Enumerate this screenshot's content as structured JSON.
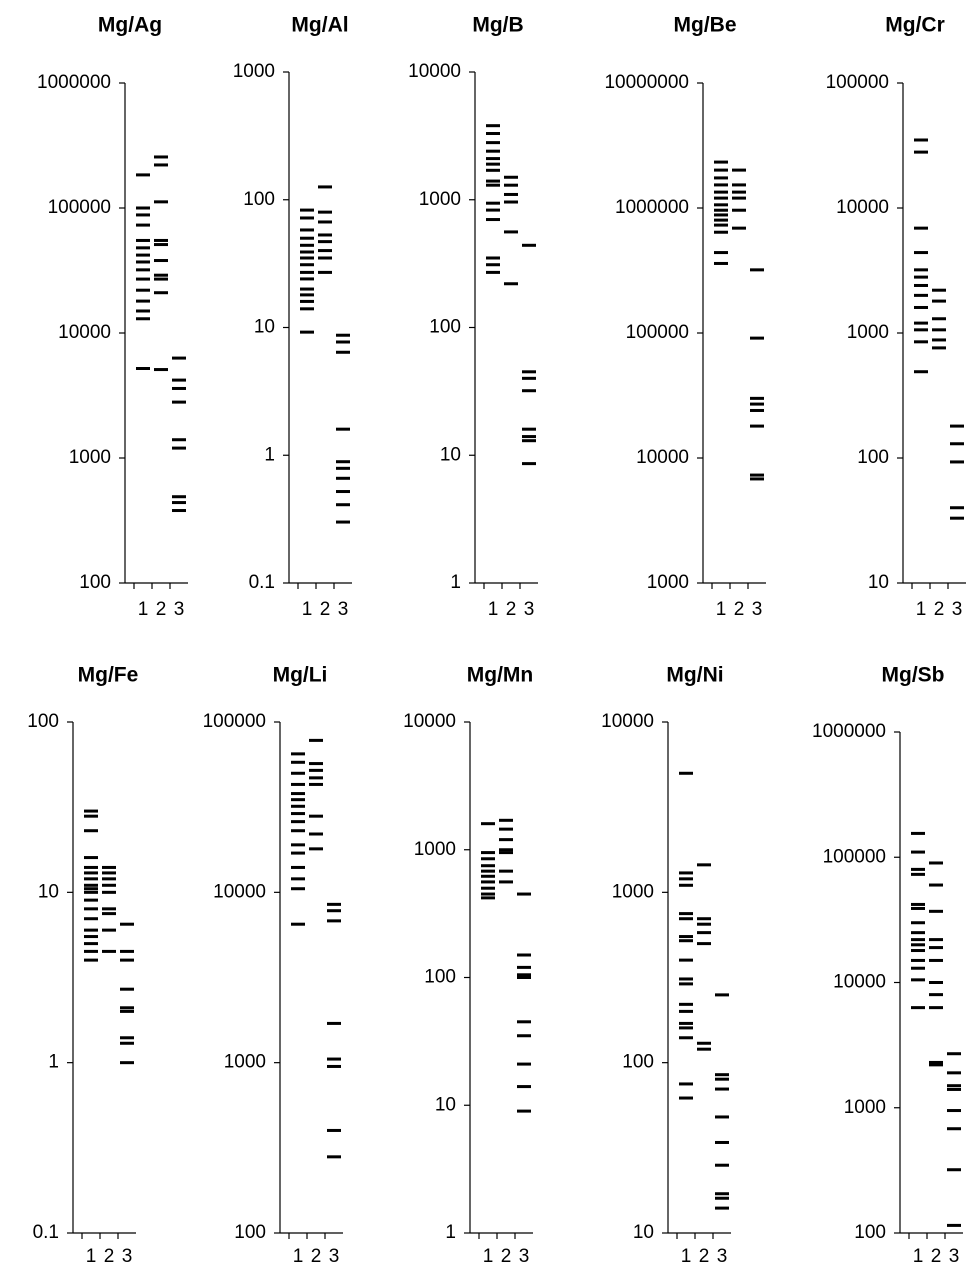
{
  "chart_data": [
    {
      "type": "strip",
      "title": "Mg/Ag",
      "log": true,
      "color": "#000000",
      "categories": [
        "1",
        "2",
        "3"
      ],
      "ylim": [
        100,
        1000000
      ],
      "yticks": [
        100,
        1000,
        10000,
        100000,
        1000000
      ],
      "values": [
        [
          184000,
          100000,
          88000,
          73000,
          55000,
          48000,
          42000,
          37000,
          32000,
          27000,
          22000,
          18000,
          15000,
          13000,
          5200
        ],
        [
          256000,
          221000,
          112000,
          55000,
          51000,
          38000,
          29000,
          27000,
          21000,
          5100
        ],
        [
          6300,
          4200,
          3600,
          2800,
          1400,
          1200,
          490,
          440,
          380
        ]
      ]
    },
    {
      "type": "strip",
      "title": "Mg/Al",
      "log": true,
      "color": "#000000",
      "categories": [
        "1",
        "2",
        "3"
      ],
      "ylim": [
        0.1,
        1000
      ],
      "yticks": [
        0.1,
        1,
        10,
        100,
        1000
      ],
      "values": [
        [
          83,
          72,
          58,
          50,
          44,
          39,
          35,
          31,
          27,
          24,
          20,
          18,
          16,
          14,
          9.2
        ],
        [
          126,
          80,
          67,
          53,
          47,
          40,
          35,
          27
        ],
        [
          8.7,
          7.7,
          6.4,
          1.6,
          0.89,
          0.79,
          0.66,
          0.52,
          0.41,
          0.3
        ]
      ]
    },
    {
      "type": "strip",
      "title": "Mg/B",
      "log": true,
      "color": "#000000",
      "categories": [
        "1",
        "2",
        "3"
      ],
      "ylim": [
        1,
        10000
      ],
      "yticks": [
        1,
        10,
        100,
        1000,
        10000
      ],
      "values": [
        [
          3800,
          3300,
          2800,
          2400,
          2100,
          1900,
          1700,
          1400,
          1300,
          940,
          830,
          700,
          350,
          310,
          270
        ],
        [
          1500,
          1300,
          1100,
          960,
          560,
          220
        ],
        [
          440,
          45,
          40,
          32,
          16,
          14,
          13,
          8.6
        ]
      ]
    },
    {
      "type": "strip",
      "title": "Mg/Be",
      "log": true,
      "color": "#000000",
      "categories": [
        "1",
        "2",
        "3"
      ],
      "ylim": [
        1000,
        10000000
      ],
      "yticks": [
        1000,
        10000,
        100000,
        1000000,
        10000000
      ],
      "values": [
        [
          2330000,
          2010000,
          1740000,
          1530000,
          1340000,
          1200000,
          1060000,
          960000,
          880000,
          800000,
          730000,
          640000,
          440000,
          360000
        ],
        [
          2010000,
          1530000,
          1340000,
          1200000,
          960000,
          690000
        ],
        [
          320000,
          91000,
          30000,
          27000,
          24000,
          18000,
          7300,
          6800
        ]
      ]
    },
    {
      "type": "strip",
      "title": "Mg/Cr",
      "log": true,
      "color": "#000000",
      "categories": [
        "1",
        "2",
        "3"
      ],
      "ylim": [
        10,
        100000
      ],
      "yticks": [
        10,
        100,
        1000,
        10000,
        100000
      ],
      "values": [
        [
          35000,
          28000,
          6900,
          4400,
          3200,
          2800,
          2400,
          2000,
          1600,
          1200,
          1060,
          850,
          490
        ],
        [
          2200,
          1800,
          1300,
          1060,
          880,
          760
        ],
        [
          180,
          130,
          93,
          40,
          33
        ]
      ]
    },
    {
      "type": "strip",
      "title": "Mg/Fe",
      "log": true,
      "color": "#000000",
      "categories": [
        "1",
        "2",
        "3"
      ],
      "ylim": [
        0.1,
        100
      ],
      "yticks": [
        0.1,
        1,
        10,
        100
      ],
      "values": [
        [
          30,
          28,
          23,
          16,
          14,
          13,
          12,
          11,
          10.5,
          10,
          9,
          8,
          7,
          6,
          5.5,
          5,
          4.5,
          4
        ],
        [
          14,
          13,
          12,
          11,
          10,
          8,
          7.5,
          6,
          4.5
        ],
        [
          6.5,
          4.5,
          4,
          2.7,
          2.1,
          2,
          1.4,
          1.3,
          1
        ]
      ]
    },
    {
      "type": "strip",
      "title": "Mg/Li",
      "log": true,
      "color": "#000000",
      "categories": [
        "1",
        "2",
        "3"
      ],
      "ylim": [
        100,
        100000
      ],
      "yticks": [
        100,
        1000,
        10000,
        100000
      ],
      "values": [
        [
          65000,
          58000,
          50000,
          43000,
          38000,
          35000,
          32000,
          29000,
          26000,
          23000,
          19000,
          17000,
          14000,
          12000,
          10500,
          6500
        ],
        [
          78000,
          57000,
          52000,
          47000,
          43000,
          28000,
          22000,
          18000
        ],
        [
          8500,
          7800,
          6800,
          1700,
          1050,
          950,
          400,
          280
        ]
      ]
    },
    {
      "type": "strip",
      "title": "Mg/Mn",
      "log": true,
      "color": "#000000",
      "categories": [
        "1",
        "2",
        "3"
      ],
      "ylim": [
        1,
        10000
      ],
      "yticks": [
        1,
        10,
        100,
        1000,
        10000
      ],
      "values": [
        [
          1600,
          950,
          850,
          750,
          680,
          620,
          560,
          500,
          450,
          420
        ],
        [
          1700,
          1450,
          1200,
          1000,
          950,
          680,
          560
        ],
        [
          450,
          150,
          120,
          105,
          100,
          45,
          35,
          21,
          14,
          9
        ]
      ]
    },
    {
      "type": "strip",
      "title": "Mg/Ni",
      "log": true,
      "color": "#000000",
      "categories": [
        "1",
        "2",
        "3"
      ],
      "ylim": [
        10,
        10000
      ],
      "yticks": [
        10,
        100,
        1000,
        10000
      ],
      "values": [
        [
          5000,
          1300,
          1200,
          1100,
          750,
          700,
          550,
          520,
          400,
          310,
          290,
          220,
          200,
          170,
          160,
          140,
          75,
          62
        ],
        [
          1450,
          700,
          650,
          580,
          500,
          130,
          120
        ],
        [
          250,
          85,
          80,
          70,
          48,
          34,
          25,
          17,
          16,
          14
        ]
      ]
    },
    {
      "type": "strip",
      "title": "Mg/Sb",
      "log": true,
      "color": "#000000",
      "categories": [
        "1",
        "2",
        "3"
      ],
      "ylim": [
        100,
        1000000
      ],
      "yticks": [
        100,
        1000,
        10000,
        100000,
        1000000
      ],
      "values": [
        [
          155000,
          110000,
          80000,
          73000,
          42000,
          39000,
          30000,
          25000,
          22000,
          20000,
          18000,
          15000,
          13000,
          10500,
          6300
        ],
        [
          90000,
          60000,
          37000,
          22000,
          19000,
          15000,
          10000,
          8000,
          6300,
          2300,
          2200
        ],
        [
          2700,
          1900,
          1500,
          1400,
          950,
          680,
          320,
          115
        ]
      ]
    }
  ]
}
